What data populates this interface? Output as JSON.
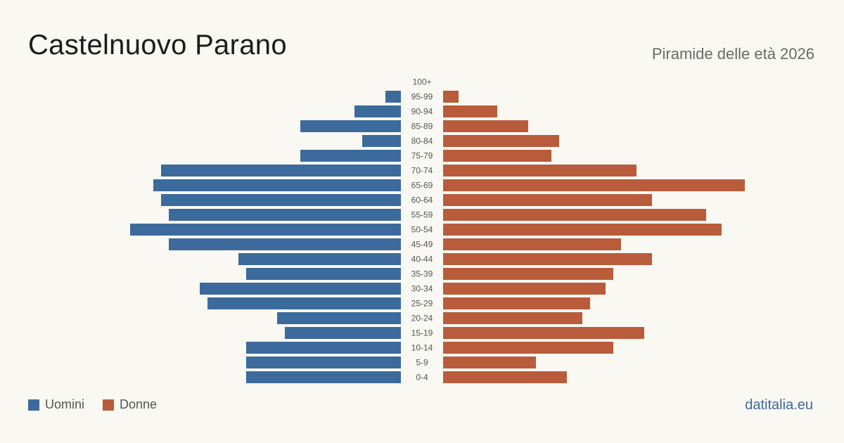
{
  "header": {
    "title": "Castelnuovo Parano",
    "subtitle": "Piramide delle età 2026"
  },
  "legend": {
    "men_label": "Uomini",
    "women_label": "Donne"
  },
  "footer": {
    "source": "datitalia.eu"
  },
  "colors": {
    "men": "#3c6a9c",
    "women": "#b95c3b",
    "background": "#faf8f3"
  },
  "chart_data": {
    "type": "bar",
    "orientation": "horizontal-population-pyramid",
    "categories": [
      "100+",
      "95-99",
      "90-94",
      "85-89",
      "80-84",
      "75-79",
      "70-74",
      "65-69",
      "60-64",
      "55-59",
      "50-54",
      "45-49",
      "40-44",
      "35-39",
      "30-34",
      "25-29",
      "20-24",
      "15-19",
      "10-14",
      "5-9",
      "0-4"
    ],
    "series": [
      {
        "name": "Uomini",
        "values": [
          0,
          2,
          6,
          13,
          5,
          13,
          31,
          32,
          31,
          30,
          35,
          30,
          21,
          20,
          26,
          25,
          16,
          15,
          20,
          20,
          20
        ]
      },
      {
        "name": "Donne",
        "values": [
          0,
          2,
          7,
          11,
          15,
          14,
          25,
          39,
          27,
          34,
          36,
          23,
          27,
          22,
          21,
          19,
          18,
          26,
          22,
          12,
          16
        ]
      }
    ],
    "grid": false,
    "legend_position": "bottom-left"
  }
}
